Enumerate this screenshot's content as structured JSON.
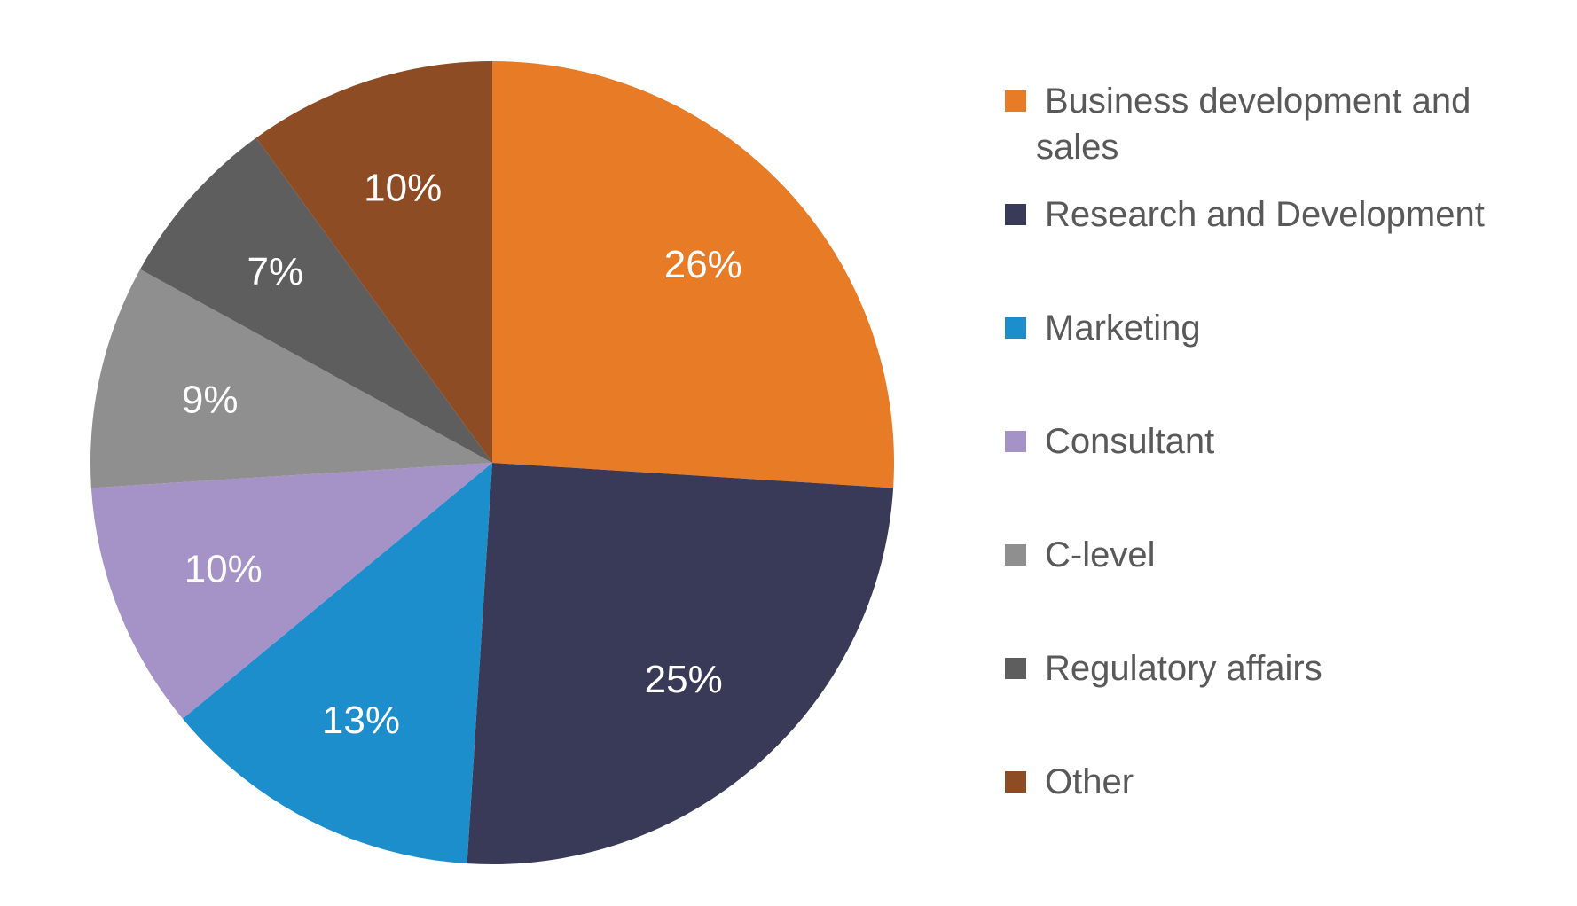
{
  "chart_data": {
    "type": "pie",
    "title": "",
    "start_angle_deg": 0,
    "direction": "clockwise",
    "legend_position": "right",
    "slices": [
      {
        "label": "Business development and sales",
        "legend_lines": [
          "Business development and",
          "sales"
        ],
        "value": 26,
        "display": "26%",
        "color": "#E87B25"
      },
      {
        "label": "Research and Development",
        "legend_lines": [
          "Research and Development"
        ],
        "value": 25,
        "display": "25%",
        "color": "#383A57"
      },
      {
        "label": "Marketing",
        "legend_lines": [
          "Marketing"
        ],
        "value": 13,
        "display": "13%",
        "color": "#1C8ECC"
      },
      {
        "label": "Consultant",
        "legend_lines": [
          "Consultant"
        ],
        "value": 10,
        "display": "10%",
        "color": "#A592C6"
      },
      {
        "label": "C-level",
        "legend_lines": [
          "C-level"
        ],
        "value": 9,
        "display": "9%",
        "color": "#8F8F8F"
      },
      {
        "label": "Regulatory affairs",
        "legend_lines": [
          "Regulatory affairs"
        ],
        "value": 7,
        "display": "7%",
        "color": "#5E5E5E"
      },
      {
        "label": "Other",
        "legend_lines": [
          "Other"
        ],
        "value": 10,
        "display": "10%",
        "color": "#8D4C24"
      }
    ]
  }
}
